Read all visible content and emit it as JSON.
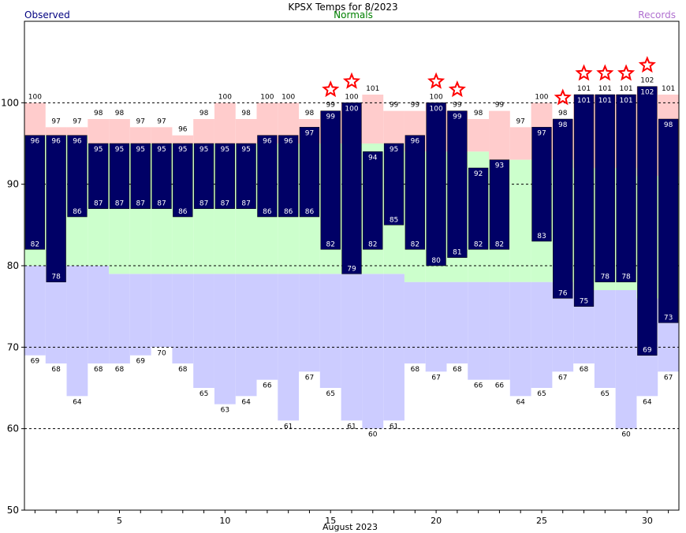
{
  "chart_data": {
    "type": "bar",
    "title": "KPSX Temps for 8/2023",
    "xlabel": "August 2023",
    "ylabel": "",
    "ylim": [
      50,
      110
    ],
    "yticks": [
      50,
      60,
      70,
      80,
      90,
      100
    ],
    "xticks": [
      5,
      10,
      15,
      20,
      25,
      30
    ],
    "grid_lines": [
      60,
      70,
      80,
      90,
      100
    ],
    "legend": {
      "observed": "Observed",
      "normals": "Normals",
      "records": "Records"
    },
    "colors": {
      "observed": "#000066",
      "normal": "#ccffcc",
      "record_high": "#ffcccc",
      "record_low": "#ccccff",
      "star": "#ff0000"
    },
    "days": [
      1,
      2,
      3,
      4,
      5,
      6,
      7,
      8,
      9,
      10,
      11,
      12,
      13,
      14,
      15,
      16,
      17,
      18,
      19,
      20,
      21,
      22,
      23,
      24,
      25,
      26,
      27,
      28,
      29,
      30,
      31
    ],
    "series": [
      {
        "name": "Observed",
        "key": "obs_high",
        "values": [
          96,
          96,
          96,
          95,
          95,
          95,
          95,
          95,
          95,
          95,
          95,
          96,
          96,
          97,
          99,
          100,
          94,
          95,
          96,
          100,
          99,
          92,
          93,
          null,
          97,
          98,
          101,
          101,
          101,
          102,
          98
        ]
      },
      {
        "name": "Observed",
        "key": "obs_low",
        "values": [
          82,
          78,
          86,
          87,
          87,
          87,
          87,
          86,
          87,
          87,
          87,
          86,
          86,
          86,
          82,
          79,
          82,
          85,
          82,
          80,
          81,
          82,
          82,
          null,
          83,
          76,
          75,
          78,
          78,
          69,
          73
        ]
      },
      {
        "name": "Normals",
        "key": "normal_high",
        "values": [
          96,
          96,
          96,
          95,
          95,
          95,
          95,
          95,
          95,
          95,
          95,
          95,
          95,
          95,
          95,
          95,
          95,
          95,
          94,
          94,
          94,
          94,
          93,
          93,
          93,
          93,
          92,
          92,
          92,
          91,
          91
        ]
      },
      {
        "name": "Normals",
        "key": "normal_low",
        "values": [
          80,
          80,
          80,
          80,
          79,
          79,
          79,
          79,
          79,
          79,
          79,
          79,
          79,
          79,
          79,
          79,
          79,
          79,
          78,
          78,
          78,
          78,
          78,
          78,
          78,
          78,
          77,
          77,
          77,
          76,
          76
        ]
      },
      {
        "name": "Records",
        "key": "record_high",
        "values": [
          100,
          97,
          97,
          98,
          98,
          97,
          97,
          96,
          98,
          100,
          98,
          100,
          100,
          98,
          99,
          100,
          101,
          99,
          99,
          100,
          99,
          98,
          99,
          97,
          100,
          98,
          101,
          101,
          101,
          102,
          101
        ]
      },
      {
        "name": "Records",
        "key": "record_low",
        "values": [
          69,
          68,
          64,
          68,
          68,
          69,
          70,
          68,
          65,
          63,
          64,
          66,
          61,
          67,
          65,
          61,
          60,
          61,
          68,
          67,
          68,
          66,
          66,
          64,
          65,
          67,
          68,
          65,
          60,
          64,
          67
        ]
      }
    ],
    "record_set_days": [
      15,
      16,
      20,
      21,
      26,
      27,
      28,
      29,
      30
    ]
  }
}
